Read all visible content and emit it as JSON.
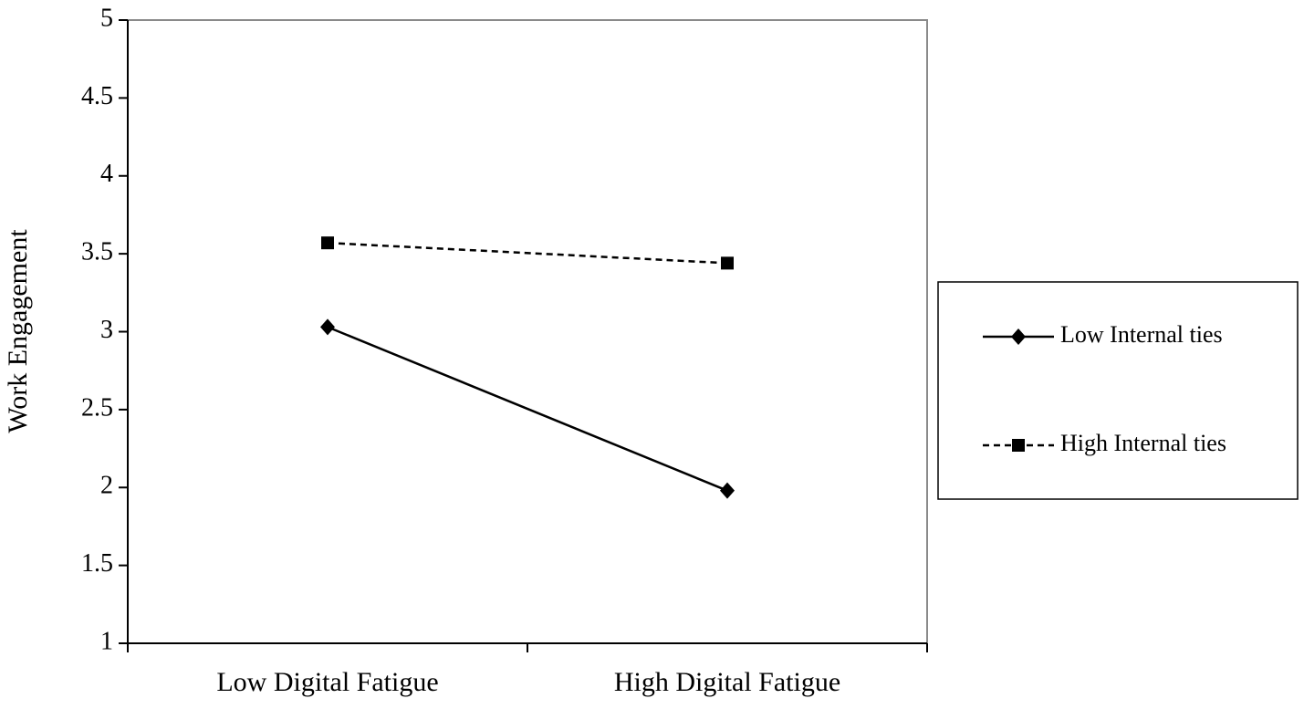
{
  "chart_data": {
    "type": "line",
    "y_label": "Work Engagement",
    "categories": [
      "Low Digital Fatigue",
      "High Digital Fatigue"
    ],
    "series": [
      {
        "name": "Low Internal ties",
        "color": "#000000",
        "line_style": "solid",
        "marker": "diamond",
        "values": [
          3.03,
          1.98
        ]
      },
      {
        "name": "High Internal ties",
        "color": "#000000",
        "line_style": "dashed",
        "marker": "square",
        "values": [
          3.57,
          3.44
        ]
      }
    ],
    "ylim": [
      1,
      5
    ],
    "yticks": [
      1,
      1.5,
      2,
      2.5,
      3,
      3.5,
      4,
      4.5,
      5
    ],
    "grid": false,
    "legend": "right"
  }
}
